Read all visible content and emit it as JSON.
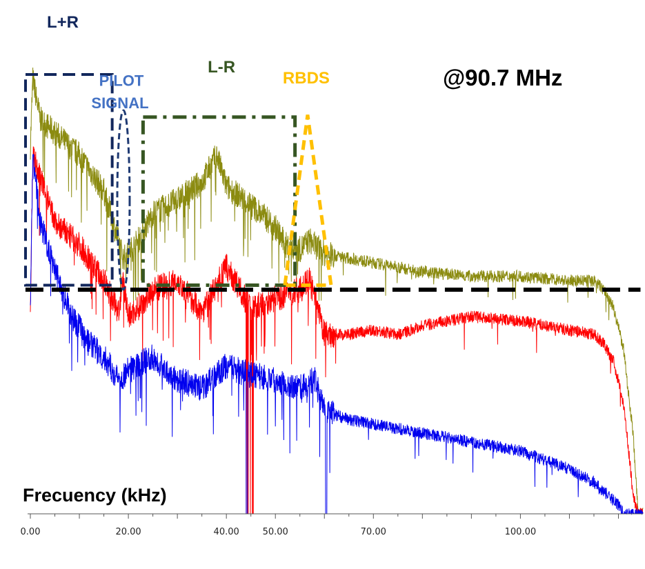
{
  "chart_data": {
    "type": "line",
    "title": "@90.7 MHz",
    "xlabel": "Frecuency (kHz)",
    "ylabel": "",
    "xlim": [
      0,
      125
    ],
    "ylim": [
      -100,
      0
    ],
    "grid": false,
    "x_ticks": [
      0,
      20,
      40,
      50,
      70,
      100
    ],
    "x_tick_labels": [
      "0.00",
      "20.00",
      "40.00",
      "50.00",
      "70.00",
      "100.00"
    ],
    "threshold": -50,
    "colors": {
      "olive": "#8b8b10",
      "red": "#ff0000",
      "blue": "#0000ee",
      "lr_sum": "#12275c",
      "pilot": "#4472c4",
      "lr_diff": "#375623",
      "rbds": "#ffc000",
      "threshold": "#000000"
    },
    "annotations": [
      {
        "label": "L+R",
        "x_range": [
          0,
          16.7
        ],
        "color": "#12275c"
      },
      {
        "label": "PILOT",
        "label2": "SIGNAL",
        "x": 19,
        "color": "#4472c4"
      },
      {
        "label": "L-R",
        "x_range": [
          23,
          54
        ],
        "color": "#375623"
      },
      {
        "label": "RBDS",
        "x": 57,
        "color": "#ffc000"
      }
    ],
    "series": [
      {
        "color": "#8b8b10",
        "x": [
          0,
          0.5,
          2,
          5,
          10,
          15,
          19,
          20,
          22,
          23,
          25,
          30,
          35,
          38,
          40,
          45,
          50,
          52,
          55,
          57,
          60,
          65,
          70,
          80,
          90,
          100,
          110,
          115,
          117,
          119,
          121,
          123,
          124,
          125
        ],
        "y": [
          -18,
          -3,
          -12,
          -15,
          -20,
          -28,
          -43,
          -42,
          -39,
          -37,
          -33,
          -30,
          -26,
          -20,
          -27,
          -31,
          -36,
          -40,
          -41,
          -39,
          -42,
          -43,
          -44,
          -46,
          -47,
          -47,
          -48,
          -48,
          -50,
          -54,
          -63,
          -82,
          -100,
          -100
        ]
      },
      {
        "color": "#ff0000",
        "x": [
          0,
          0.5,
          2,
          5,
          8,
          10,
          15,
          18,
          19,
          20,
          22,
          25,
          30,
          35,
          40,
          45,
          50,
          55,
          57,
          60,
          65,
          70,
          75,
          80,
          85,
          90,
          100,
          110,
          115,
          117,
          119,
          121,
          122,
          123,
          124,
          125
        ],
        "y": [
          -55,
          -20,
          -25,
          -35,
          -38,
          -40,
          -48,
          -55,
          -48,
          -56,
          -54,
          -50,
          -48,
          -55,
          -45,
          -54,
          -52,
          -50,
          -48,
          -60,
          -60,
          -59,
          -60,
          -58,
          -57,
          -56,
          -57,
          -59,
          -60,
          -62,
          -66,
          -75,
          -85,
          -96,
          -100,
          -100
        ]
      },
      {
        "color": "#0000ee",
        "x": [
          0,
          0.5,
          2,
          5,
          8,
          12,
          15,
          18,
          20,
          25,
          30,
          35,
          40,
          45,
          50,
          55,
          58,
          60,
          65,
          70,
          80,
          90,
          100,
          110,
          115,
          118,
          120,
          121,
          122
        ],
        "y": [
          -55,
          -20,
          -35,
          -45,
          -55,
          -62,
          -65,
          -70,
          -68,
          -65,
          -70,
          -72,
          -67,
          -69,
          -70,
          -72,
          -70,
          -77,
          -79,
          -80,
          -82,
          -84,
          -86,
          -90,
          -93,
          -96,
          -98,
          -100,
          -100
        ]
      }
    ]
  }
}
